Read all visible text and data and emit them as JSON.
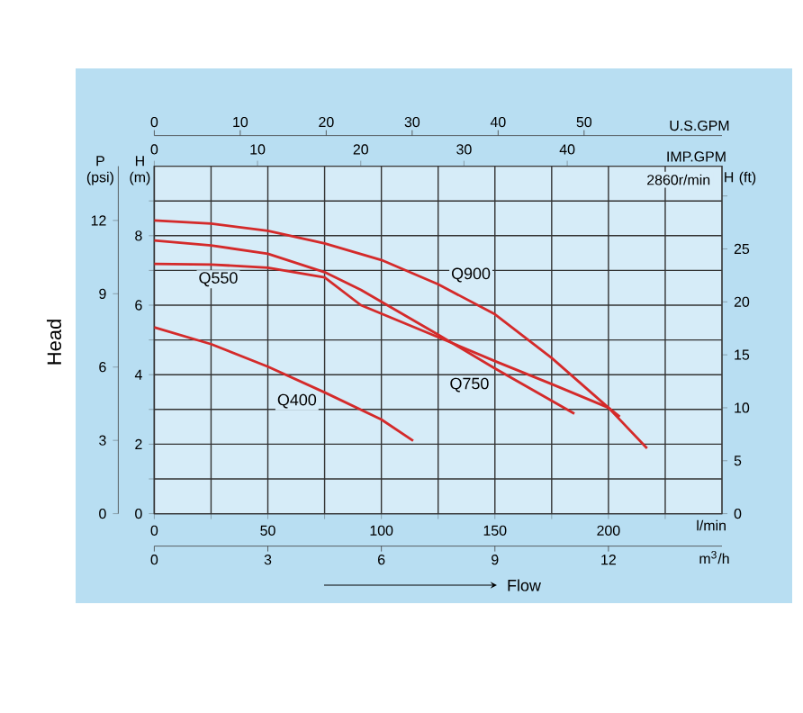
{
  "chart_data": {
    "type": "line",
    "xlabel": "l/min",
    "x2label": "IMP.GPM",
    "ylabel": "H (m)",
    "y2label": "P (psi)",
    "y3label": "H (ft)",
    "annotations": [
      "Head",
      "Flow",
      "2860r/min",
      "U.S.GPM",
      "0",
      "10",
      "20",
      "30",
      "40",
      "50",
      "m$^{3}$/h",
      "0",
      "3",
      "6",
      "9",
      "12"
    ],
    "xlim": [
      0,
      250
    ],
    "xticks": [
      0,
      {
        "value": 25,
        "label": null
      },
      50,
      {
        "value": 75,
        "label": null
      },
      100,
      {
        "value": 125,
        "label": null
      },
      150,
      {
        "value": 175,
        "label": null
      },
      200,
      {
        "value": 225,
        "label": null
      }
    ],
    "ylim": [
      0,
      10
    ],
    "yticks": [
      0,
      {
        "value": 1,
        "label": null
      },
      2,
      {
        "value": 3,
        "label": null
      },
      4,
      {
        "value": 5,
        "label": null
      },
      6,
      {
        "value": 7,
        "label": null
      },
      8,
      {
        "value": 9,
        "label": null
      }
    ],
    "x2lim": [
      0,
      54.99
    ],
    "x2ticks": [
      0,
      10,
      20,
      30,
      40
    ],
    "y2lim": [
      0,
      14.22
    ],
    "y2ticks": [
      0,
      3,
      6,
      9,
      12
    ],
    "y3lim": [
      0,
      32.81
    ],
    "y3ticks": [
      0,
      5,
      10,
      15,
      20,
      25,
      {
        "value": 30,
        "label": null
      }
    ],
    "grid": true,
    "series": [
      {
        "name": "Q400",
        "color": "#d42a2a",
        "x": [
          0,
          25,
          50,
          75,
          100,
          114
        ],
        "values": [
          5.36,
          4.88,
          4.23,
          3.49,
          2.71,
          2.1
        ]
      },
      {
        "name": "Q550",
        "color": "#d42a2a",
        "x": [
          0,
          25,
          50,
          75,
          91,
          125,
          150,
          175,
          200,
          205
        ],
        "values": [
          7.19,
          7.17,
          7.08,
          6.8,
          6.0,
          5.08,
          4.39,
          3.73,
          3.05,
          2.79
        ]
      },
      {
        "name": "Q750",
        "color": "#d42a2a",
        "x": [
          0,
          25,
          50,
          75,
          91,
          125,
          150,
          185
        ],
        "values": [
          7.86,
          7.72,
          7.48,
          6.95,
          6.44,
          5.15,
          4.18,
          2.88
        ]
      },
      {
        "name": "Q900",
        "color": "#d42a2a",
        "x": [
          0,
          25,
          50,
          75,
          100,
          125,
          150,
          175,
          200,
          217
        ],
        "values": [
          8.44,
          8.35,
          8.14,
          7.78,
          7.3,
          6.6,
          5.74,
          4.48,
          3.05,
          1.88
        ]
      }
    ]
  }
}
